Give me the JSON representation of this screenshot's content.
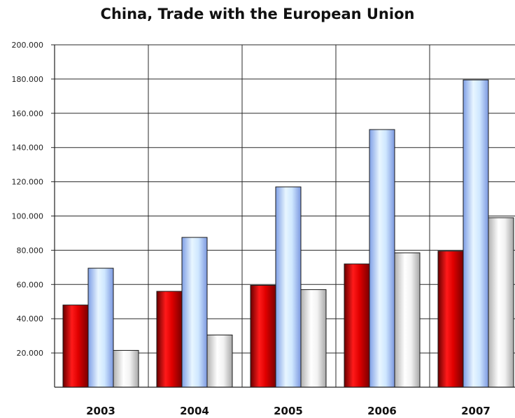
{
  "chart_data": {
    "type": "bar",
    "title": "China, Trade with the European Union",
    "categories": [
      "2003",
      "2004",
      "2005",
      "2006",
      "2007"
    ],
    "series": [
      {
        "color": "#d40000",
        "values": [
          48000,
          56000,
          59500,
          72000,
          79500
        ]
      },
      {
        "color": "#b7d6ff",
        "values": [
          69500,
          87500,
          117000,
          150500,
          179500
        ]
      },
      {
        "color": "#e6e6e6",
        "values": [
          21500,
          30500,
          57000,
          78500,
          99000
        ]
      }
    ],
    "ylim": [
      0,
      200000
    ],
    "yticks": [
      20000,
      40000,
      60000,
      80000,
      100000,
      120000,
      140000,
      160000,
      180000,
      200000
    ],
    "ytick_labels": [
      "20.000",
      "40.000",
      "60.000",
      "80.000",
      "100.000",
      "120.000",
      "140.000",
      "160.000",
      "180.000",
      "200.000"
    ],
    "grid": true,
    "legend": false
  }
}
